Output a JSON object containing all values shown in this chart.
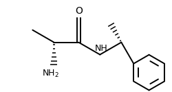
{
  "bg_color": "#ffffff",
  "line_color": "#000000",
  "line_width": 1.4,
  "font_size_label": 9,
  "fig_width": 2.5,
  "fig_height": 1.34,
  "dpi": 100
}
